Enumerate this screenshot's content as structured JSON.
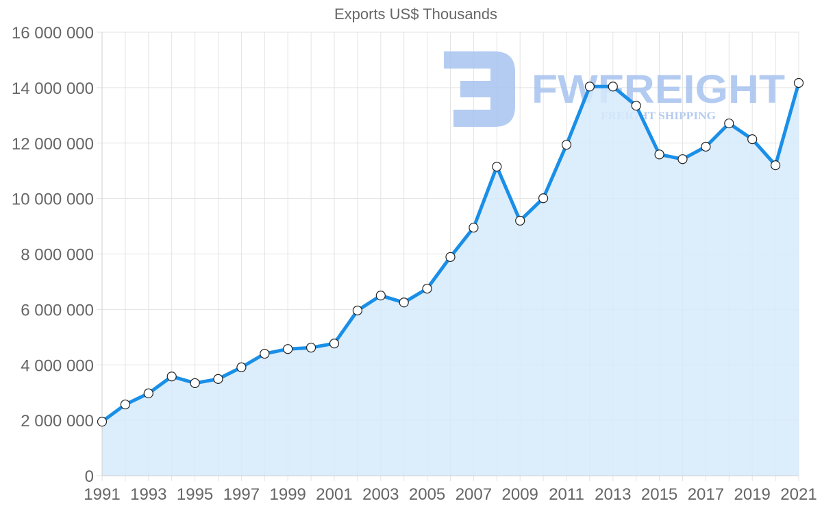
{
  "chart_data": {
    "type": "area",
    "title": "Exports US$ Thousands",
    "xlabel": "",
    "ylabel": "",
    "x": [
      1991,
      1992,
      1993,
      1994,
      1995,
      1996,
      1997,
      1998,
      1999,
      2000,
      2001,
      2002,
      2003,
      2004,
      2005,
      2006,
      2007,
      2008,
      2009,
      2010,
      2011,
      2012,
      2013,
      2014,
      2015,
      2016,
      2017,
      2018,
      2019,
      2020,
      2021
    ],
    "series": [
      {
        "name": "Exports US$ Thousands",
        "values": [
          1950000,
          2570000,
          2970000,
          3580000,
          3340000,
          3490000,
          3910000,
          4400000,
          4570000,
          4620000,
          4770000,
          5960000,
          6500000,
          6250000,
          6750000,
          7890000,
          8950000,
          11150000,
          9200000,
          10010000,
          11940000,
          14040000,
          14040000,
          13350000,
          11590000,
          11420000,
          11870000,
          12710000,
          12140000,
          11200000,
          14170000
        ],
        "color": "#1a8fe8",
        "fill": "#d6eafb"
      }
    ],
    "ylim": [
      0,
      16000000
    ],
    "y_ticks": [
      0,
      2000000,
      4000000,
      6000000,
      8000000,
      10000000,
      12000000,
      14000000,
      16000000
    ],
    "y_tick_labels": [
      "0",
      "2 000 000",
      "4 000 000",
      "6 000 000",
      "8 000 000",
      "10 000 000",
      "12 000 000",
      "14 000 000",
      "16 000 000"
    ],
    "x_tick_labels": [
      "1991",
      "1993",
      "1995",
      "1997",
      "1999",
      "2001",
      "2003",
      "2005",
      "2007",
      "2009",
      "2011",
      "2013",
      "2015",
      "2017",
      "2019",
      "2021"
    ],
    "grid": true,
    "legend": "none"
  },
  "watermark": {
    "brand": "FWFREIGHT",
    "tagline": "FREIGHT SHIPPING",
    "color": "#a7c3ef"
  }
}
